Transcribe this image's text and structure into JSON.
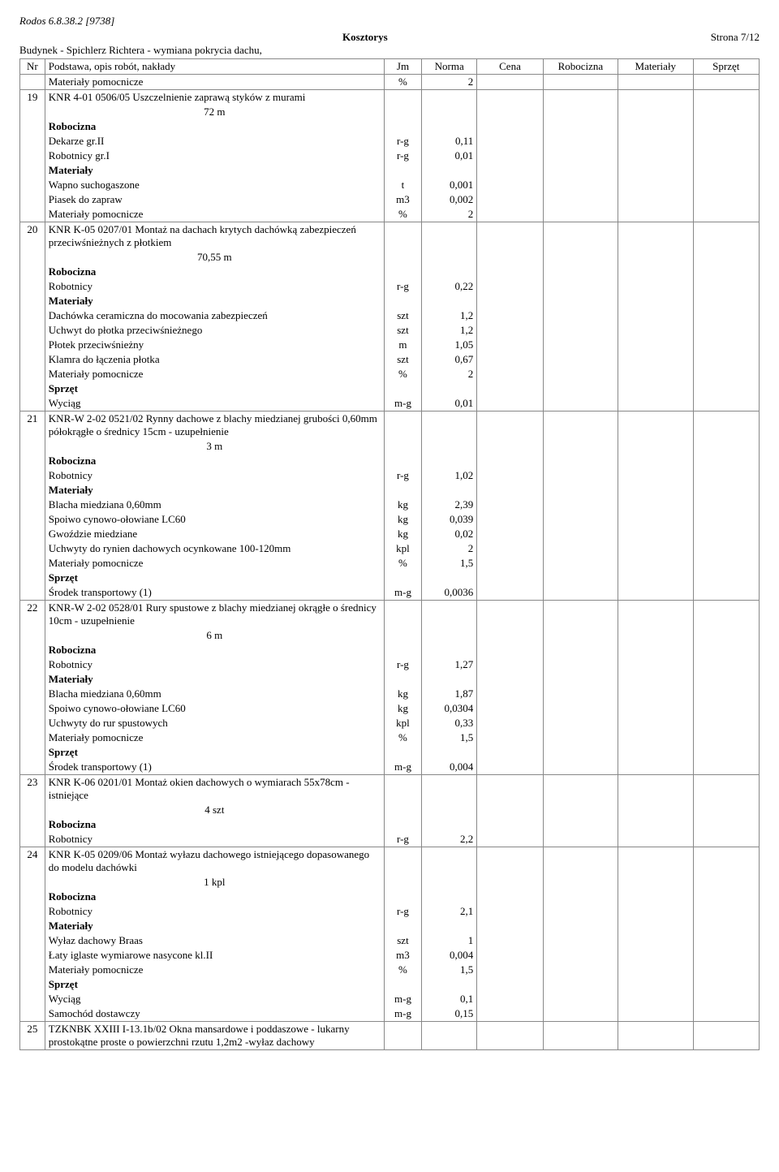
{
  "header_software": "Rodos 6.8.38.2 [9738]",
  "doc_title": "Kosztorys",
  "page_label": "Strona 7/12",
  "subtitle": "Budynek - Spichlerz Richtera -  wymiana pokrycia dachu,",
  "columns": {
    "nr": "Nr",
    "desc": "Podstawa, opis robót, nakłady",
    "jm": "Jm",
    "norma": "Norma",
    "cena": "Cena",
    "rob": "Robocizna",
    "mat": "Materiały",
    "spr": "Sprzęt"
  },
  "section_labels": {
    "rob": "Robocizna",
    "mat": "Materiały",
    "spr": "Sprzęt"
  },
  "rows": [
    {
      "nr": "",
      "lines": [
        {
          "label": "Materiały pomocnicze",
          "jm": "%",
          "norma": "2"
        }
      ],
      "group_end": true
    },
    {
      "nr": "19",
      "title": "KNR 4-01 0506/05  Uszczelnienie zaprawą styków z murami",
      "qty": "72  m",
      "lines": [
        {
          "section": "rob"
        },
        {
          "label": "Dekarze gr.II",
          "jm": "r-g",
          "norma": "0,11"
        },
        {
          "label": "Robotnicy gr.I",
          "jm": "r-g",
          "norma": "0,01"
        },
        {
          "section": "mat"
        },
        {
          "label": "Wapno suchogaszone",
          "jm": "t",
          "norma": "0,001"
        },
        {
          "label": "Piasek do zapraw",
          "jm": "m3",
          "norma": "0,002"
        },
        {
          "label": "Materiały pomocnicze",
          "jm": "%",
          "norma": "2"
        }
      ],
      "group_end": true
    },
    {
      "nr": "20",
      "title": "KNR K-05 0207/01  Montaż na dachach krytych dachówką  zabezpieczeń przeciwśnieżnych z płotkiem",
      "qty": "70,55  m",
      "lines": [
        {
          "section": "rob"
        },
        {
          "label": "Robotnicy",
          "jm": "r-g",
          "norma": "0,22"
        },
        {
          "section": "mat"
        },
        {
          "label": "Dachówka ceramiczna do mocowania zabezpieczeń",
          "jm": "szt",
          "norma": "1,2"
        },
        {
          "label": "Uchwyt  do płotka przeciwśnieżnego",
          "jm": "szt",
          "norma": "1,2"
        },
        {
          "label": "Płotek przeciwśnieżny",
          "jm": "m",
          "norma": "1,05"
        },
        {
          "label": "Klamra do łączenia płotka",
          "jm": "szt",
          "norma": "0,67"
        },
        {
          "label": "Materiały pomocnicze",
          "jm": "%",
          "norma": "2"
        },
        {
          "section": "spr"
        },
        {
          "label": "Wyciąg",
          "jm": "m-g",
          "norma": "0,01"
        }
      ],
      "group_end": true
    },
    {
      "nr": "21",
      "title": "KNR-W 2-02 0521/02  Rynny dachowe z blachy miedzianej grubości 0,60mm półokrągłe o średnicy 15cm - uzupełnienie",
      "qty": "3  m",
      "lines": [
        {
          "section": "rob"
        },
        {
          "label": "Robotnicy",
          "jm": "r-g",
          "norma": "1,02"
        },
        {
          "section": "mat"
        },
        {
          "label": "Blacha miedziana 0,60mm",
          "jm": "kg",
          "norma": "2,39"
        },
        {
          "label": "Spoiwo cynowo-ołowiane LC60",
          "jm": "kg",
          "norma": "0,039"
        },
        {
          "label": "Gwoździe miedziane",
          "jm": "kg",
          "norma": "0,02"
        },
        {
          "label": "Uchwyty do rynien dachowych ocynkowane 100-120mm",
          "jm": "kpl",
          "norma": "2"
        },
        {
          "label": "Materiały pomocnicze",
          "jm": "%",
          "norma": "1,5"
        },
        {
          "section": "spr"
        },
        {
          "label": "Środek transportowy (1)",
          "jm": "m-g",
          "norma": "0,0036"
        }
      ],
      "group_end": true
    },
    {
      "nr": "22",
      "title": "KNR-W 2-02 0528/01  Rury spustowe z blachy miedzianej okrągłe o średnicy 10cm - uzupełnienie",
      "qty": "6  m",
      "lines": [
        {
          "section": "rob"
        },
        {
          "label": "Robotnicy",
          "jm": "r-g",
          "norma": "1,27"
        },
        {
          "section": "mat"
        },
        {
          "label": "Blacha miedziana 0,60mm",
          "jm": "kg",
          "norma": "1,87"
        },
        {
          "label": "Spoiwo cynowo-ołowiane LC60",
          "jm": "kg",
          "norma": "0,0304"
        },
        {
          "label": "Uchwyty do rur spustowych",
          "jm": "kpl",
          "norma": "0,33"
        },
        {
          "label": "Materiały pomocnicze",
          "jm": "%",
          "norma": "1,5"
        },
        {
          "section": "spr"
        },
        {
          "label": "Środek transportowy (1)",
          "jm": "m-g",
          "norma": "0,004"
        }
      ],
      "group_end": true
    },
    {
      "nr": "23",
      "title": "KNR K-06 0201/01  Montaż okien dachowych o wymiarach 55x78cm - istniejące",
      "qty": "4  szt",
      "lines": [
        {
          "section": "rob"
        },
        {
          "label": "Robotnicy",
          "jm": "r-g",
          "norma": "2,2"
        }
      ],
      "group_end": true
    },
    {
      "nr": "24",
      "title": "KNR K-05 0209/06  Montaż wyłazu dachowego istniejącego  dopasowanego do modelu dachówki",
      "qty": "1  kpl",
      "lines": [
        {
          "section": "rob"
        },
        {
          "label": "Robotnicy",
          "jm": "r-g",
          "norma": "2,1"
        },
        {
          "section": "mat"
        },
        {
          "label": "Wyłaz dachowy Braas",
          "jm": "szt",
          "norma": "1"
        },
        {
          "label": "Łaty iglaste wymiarowe nasycone kl.II",
          "jm": "m3",
          "norma": "0,004"
        },
        {
          "label": "Materiały pomocnicze",
          "jm": "%",
          "norma": "1,5"
        },
        {
          "section": "spr"
        },
        {
          "label": "Wyciąg",
          "jm": "m-g",
          "norma": "0,1"
        },
        {
          "label": "Samochód dostawczy",
          "jm": "m-g",
          "norma": "0,15"
        }
      ],
      "group_end": true
    },
    {
      "nr": "25",
      "title": "TZKNBK XXIII I-13.1b/02  Okna mansardowe i poddaszowe - lukarny prostokątne proste o powierzchni rzutu 1,2m2 -wyłaz dachowy",
      "lines": [],
      "group_end": true
    }
  ]
}
